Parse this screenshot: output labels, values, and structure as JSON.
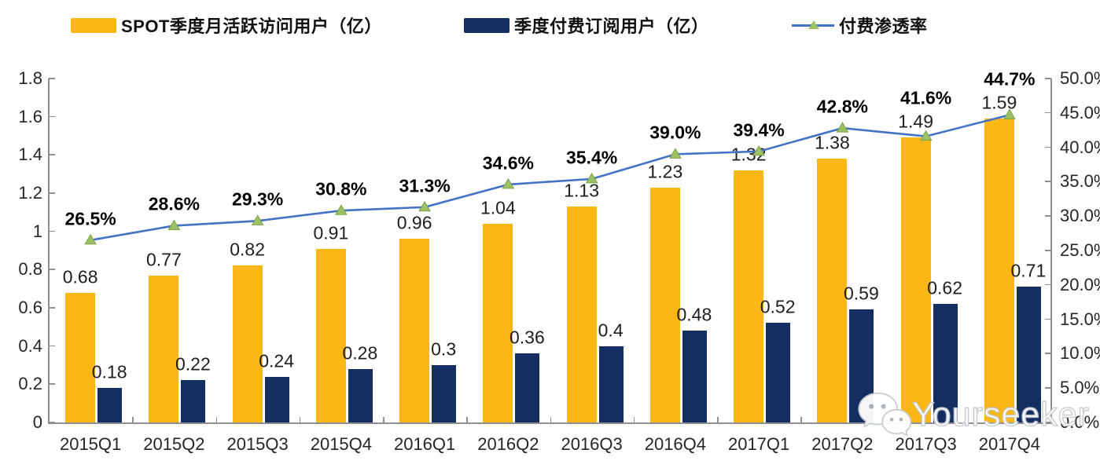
{
  "legend": {
    "items": [
      {
        "label": "SPOT季度月活跃访问用户（亿）",
        "swatch": "bar",
        "color": "#FBB715"
      },
      {
        "label": "季度付费订阅用户（亿）",
        "swatch": "bar",
        "color": "#142E62"
      },
      {
        "label": "付费渗透率",
        "swatch": "line",
        "color": "#4472C4",
        "marker_color": "#9BC162"
      }
    ]
  },
  "chart_data": {
    "type": "bar",
    "subtype": "grouped-bars-with-line",
    "categories": [
      "2015Q1",
      "2015Q2",
      "2015Q3",
      "2015Q4",
      "2016Q1",
      "2016Q2",
      "2016Q3",
      "2016Q4",
      "2017Q1",
      "2017Q2",
      "2017Q3",
      "2017Q4"
    ],
    "series": [
      {
        "name": "SPOT季度月活跃访问用户（亿）",
        "type": "bar",
        "axis": "left",
        "color": "#FBB715",
        "values": [
          0.68,
          0.77,
          0.82,
          0.91,
          0.96,
          1.04,
          1.13,
          1.23,
          1.32,
          1.38,
          1.49,
          1.59
        ],
        "labels": [
          "0.68",
          "0.77",
          "0.82",
          "0.91",
          "0.96",
          "1.04",
          "1.13",
          "1.23",
          "1.32",
          "1.38",
          "1.49",
          "1.59"
        ]
      },
      {
        "name": "季度付费订阅用户（亿）",
        "type": "bar",
        "axis": "left",
        "color": "#142E62",
        "values": [
          0.18,
          0.22,
          0.24,
          0.28,
          0.3,
          0.36,
          0.4,
          0.48,
          0.52,
          0.59,
          0.62,
          0.71
        ],
        "labels": [
          "0.18",
          "0.22",
          "0.24",
          "0.28",
          "0.3",
          "0.36",
          "0.4",
          "0.48",
          "0.52",
          "0.59",
          "0.62",
          "0.71"
        ]
      },
      {
        "name": "付费渗透率",
        "type": "line",
        "axis": "right",
        "color": "#4472C4",
        "marker": "triangle",
        "marker_color": "#9BC162",
        "values": [
          26.5,
          28.6,
          29.3,
          30.8,
          31.3,
          34.6,
          35.4,
          39.0,
          39.4,
          42.8,
          41.6,
          44.7
        ],
        "labels": [
          "26.5%",
          "28.6%",
          "29.3%",
          "30.8%",
          "31.3%",
          "34.6%",
          "35.4%",
          "39.0%",
          "39.4%",
          "42.8%",
          "41.6%",
          "44.7%"
        ]
      }
    ],
    "left_axis": {
      "min": 0,
      "max": 1.8,
      "step": 0.2,
      "tick_labels_top_down": [
        "1.8",
        "1.6",
        "1.4",
        "1.2",
        "1",
        "0.8",
        "0.6",
        "0.4",
        "0.2",
        "0"
      ]
    },
    "right_axis": {
      "min": 0,
      "max": 50,
      "step": 5,
      "tick_labels_top_down": [
        "50.0%",
        "45.0%",
        "40.0%",
        "35.0%",
        "30.0%",
        "25.0%",
        "20.0%",
        "15.0%",
        "10.0%",
        "5.0%",
        "0.0%"
      ]
    },
    "grid": false,
    "legend_position": "top",
    "title": ""
  },
  "watermark": {
    "text": "Yourseeker",
    "icon": "wechat-icon"
  }
}
